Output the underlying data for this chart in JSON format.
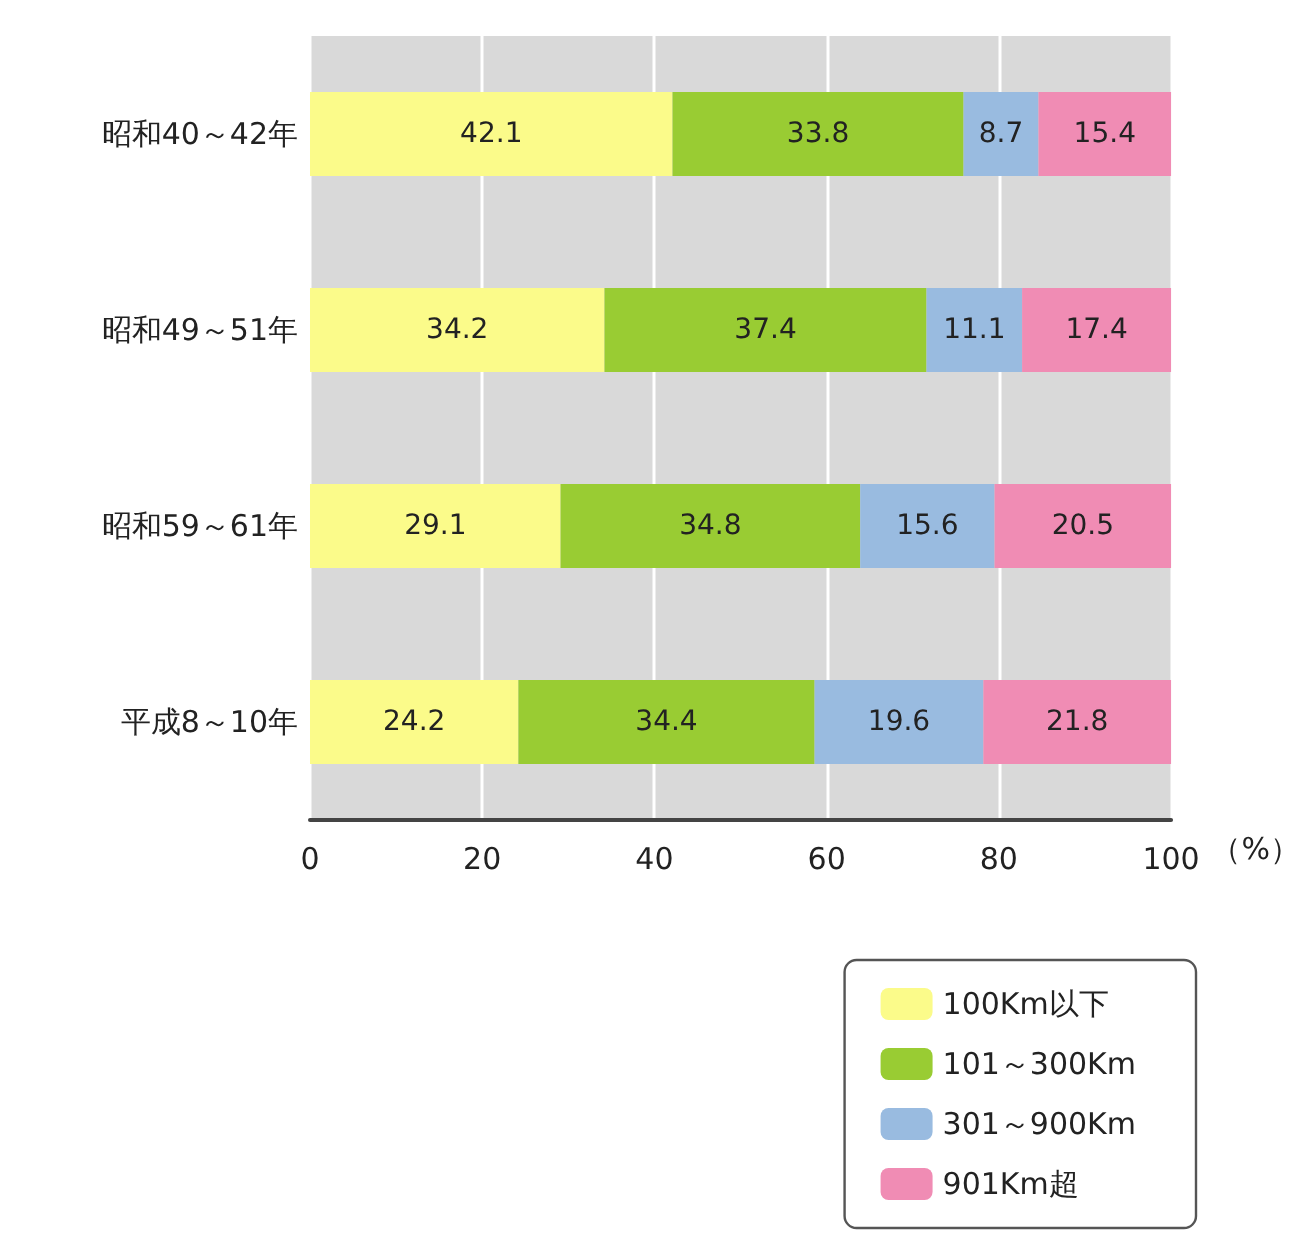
{
  "chart_data": {
    "type": "bar",
    "orientation": "horizontal",
    "stacked": true,
    "data_labels": true,
    "grid": "x",
    "legend": "bottom right",
    "xlabel": "（%）",
    "categories": [
      "昭和40～42年",
      "昭和49～51年",
      "昭和59～61年",
      "平成8～10年"
    ],
    "xlim": [
      0,
      100
    ],
    "xticks": [
      0,
      20,
      40,
      60,
      80,
      100
    ],
    "series": [
      {
        "name": "100Km以下",
        "color": "#fbfb8a",
        "values": [
          42.1,
          34.2,
          29.1,
          24.2
        ]
      },
      {
        "name": "101～300Km",
        "color": "#99cc33",
        "values": [
          33.8,
          37.4,
          34.8,
          34.4
        ]
      },
      {
        "name": "301～900Km",
        "color": "#99bbe0",
        "values": [
          8.7,
          11.1,
          15.6,
          19.6
        ]
      },
      {
        "name": "901Km超",
        "color": "#f08cb4",
        "values": [
          15.4,
          17.4,
          20.5,
          21.8
        ]
      }
    ]
  }
}
